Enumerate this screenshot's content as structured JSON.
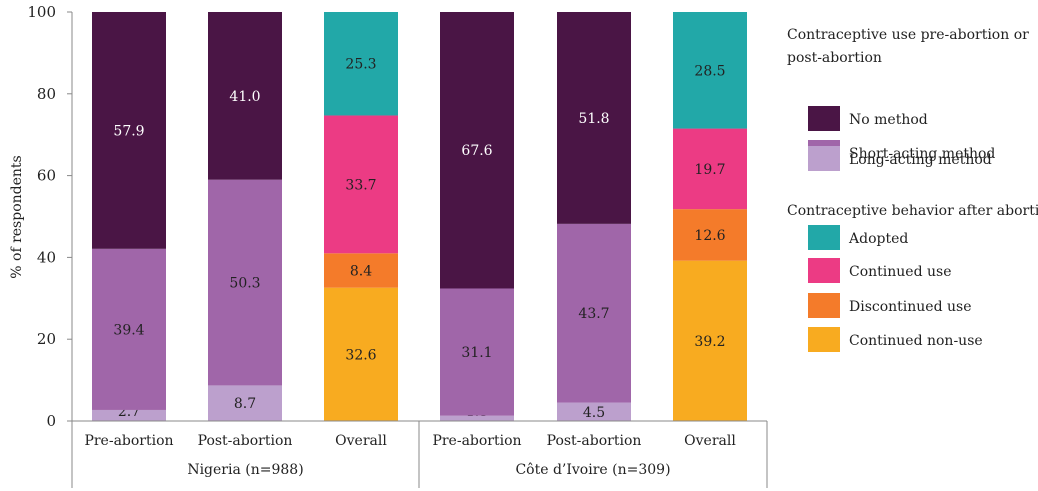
{
  "chart_data": {
    "type": "bar",
    "stacked": true,
    "ylabel": "% of respondents",
    "ylim": [
      0,
      100
    ],
    "yticks": [
      0,
      20,
      40,
      60,
      80,
      100
    ],
    "grid": false,
    "legend_position": "right",
    "groups": [
      {
        "label": "Nigeria (n=988)",
        "categories": [
          "Pre-abortion",
          "Post-abortion",
          "Overall"
        ]
      },
      {
        "label": "Côte d’Ivoire (n=309)",
        "categories": [
          "Pre-abortion",
          "Post-abortion",
          "Overall"
        ]
      }
    ],
    "legend_groups": [
      {
        "title_lines": [
          "Contraceptive use pre-abortion or",
          "post-abortion"
        ],
        "entries": [
          {
            "key": "no_method",
            "label": "No method"
          },
          {
            "key": "short",
            "label": "Short-acting method"
          },
          {
            "key": "long",
            "label": "Long-acting method"
          }
        ]
      },
      {
        "title_lines": [
          "Contraceptive behavior after abortion"
        ],
        "entries": [
          {
            "key": "adopted",
            "label": "Adopted"
          },
          {
            "key": "continued",
            "label": "Continued use"
          },
          {
            "key": "discontinued",
            "label": "Discontinued use"
          },
          {
            "key": "nonuse",
            "label": "Continued non-use"
          }
        ]
      }
    ],
    "colors": {
      "no_method": "#4a1545",
      "short": "#a066a9",
      "long": "#bca0cd",
      "adopted": "#22a8a8",
      "continued": "#ec3b84",
      "discontinued": "#f47b2a",
      "nonuse": "#f8ab20"
    },
    "bars": [
      {
        "group": 0,
        "category": "Pre-abortion",
        "segments": [
          {
            "key": "long",
            "value": 2.7,
            "label": "2.7"
          },
          {
            "key": "short",
            "value": 39.4,
            "label": "39.4"
          },
          {
            "key": "no_method",
            "value": 57.9,
            "label": "57.9"
          }
        ]
      },
      {
        "group": 0,
        "category": "Post-abortion",
        "segments": [
          {
            "key": "long",
            "value": 8.7,
            "label": "8.7"
          },
          {
            "key": "short",
            "value": 50.3,
            "label": "50.3"
          },
          {
            "key": "no_method",
            "value": 41.0,
            "label": "41.0"
          }
        ]
      },
      {
        "group": 0,
        "category": "Overall",
        "segments": [
          {
            "key": "nonuse",
            "value": 32.6,
            "label": "32.6"
          },
          {
            "key": "discontinued",
            "value": 8.4,
            "label": "8.4"
          },
          {
            "key": "continued",
            "value": 33.7,
            "label": "33.7"
          },
          {
            "key": "adopted",
            "value": 25.3,
            "label": "25.3"
          }
        ]
      },
      {
        "group": 1,
        "category": "Pre-abortion",
        "segments": [
          {
            "key": "long",
            "value": 1.3,
            "label": "1.3"
          },
          {
            "key": "short",
            "value": 31.1,
            "label": "31.1"
          },
          {
            "key": "no_method",
            "value": 67.6,
            "label": "67.6"
          }
        ]
      },
      {
        "group": 1,
        "category": "Post-abortion",
        "segments": [
          {
            "key": "long",
            "value": 4.5,
            "label": "4.5"
          },
          {
            "key": "short",
            "value": 43.7,
            "label": "43.7"
          },
          {
            "key": "no_method",
            "value": 51.8,
            "label": "51.8"
          }
        ]
      },
      {
        "group": 1,
        "category": "Overall",
        "segments": [
          {
            "key": "nonuse",
            "value": 39.2,
            "label": "39.2"
          },
          {
            "key": "discontinued",
            "value": 12.6,
            "label": "12.6"
          },
          {
            "key": "continued",
            "value": 19.7,
            "label": "19.7"
          },
          {
            "key": "adopted",
            "value": 28.5,
            "label": "28.5"
          }
        ]
      }
    ]
  }
}
